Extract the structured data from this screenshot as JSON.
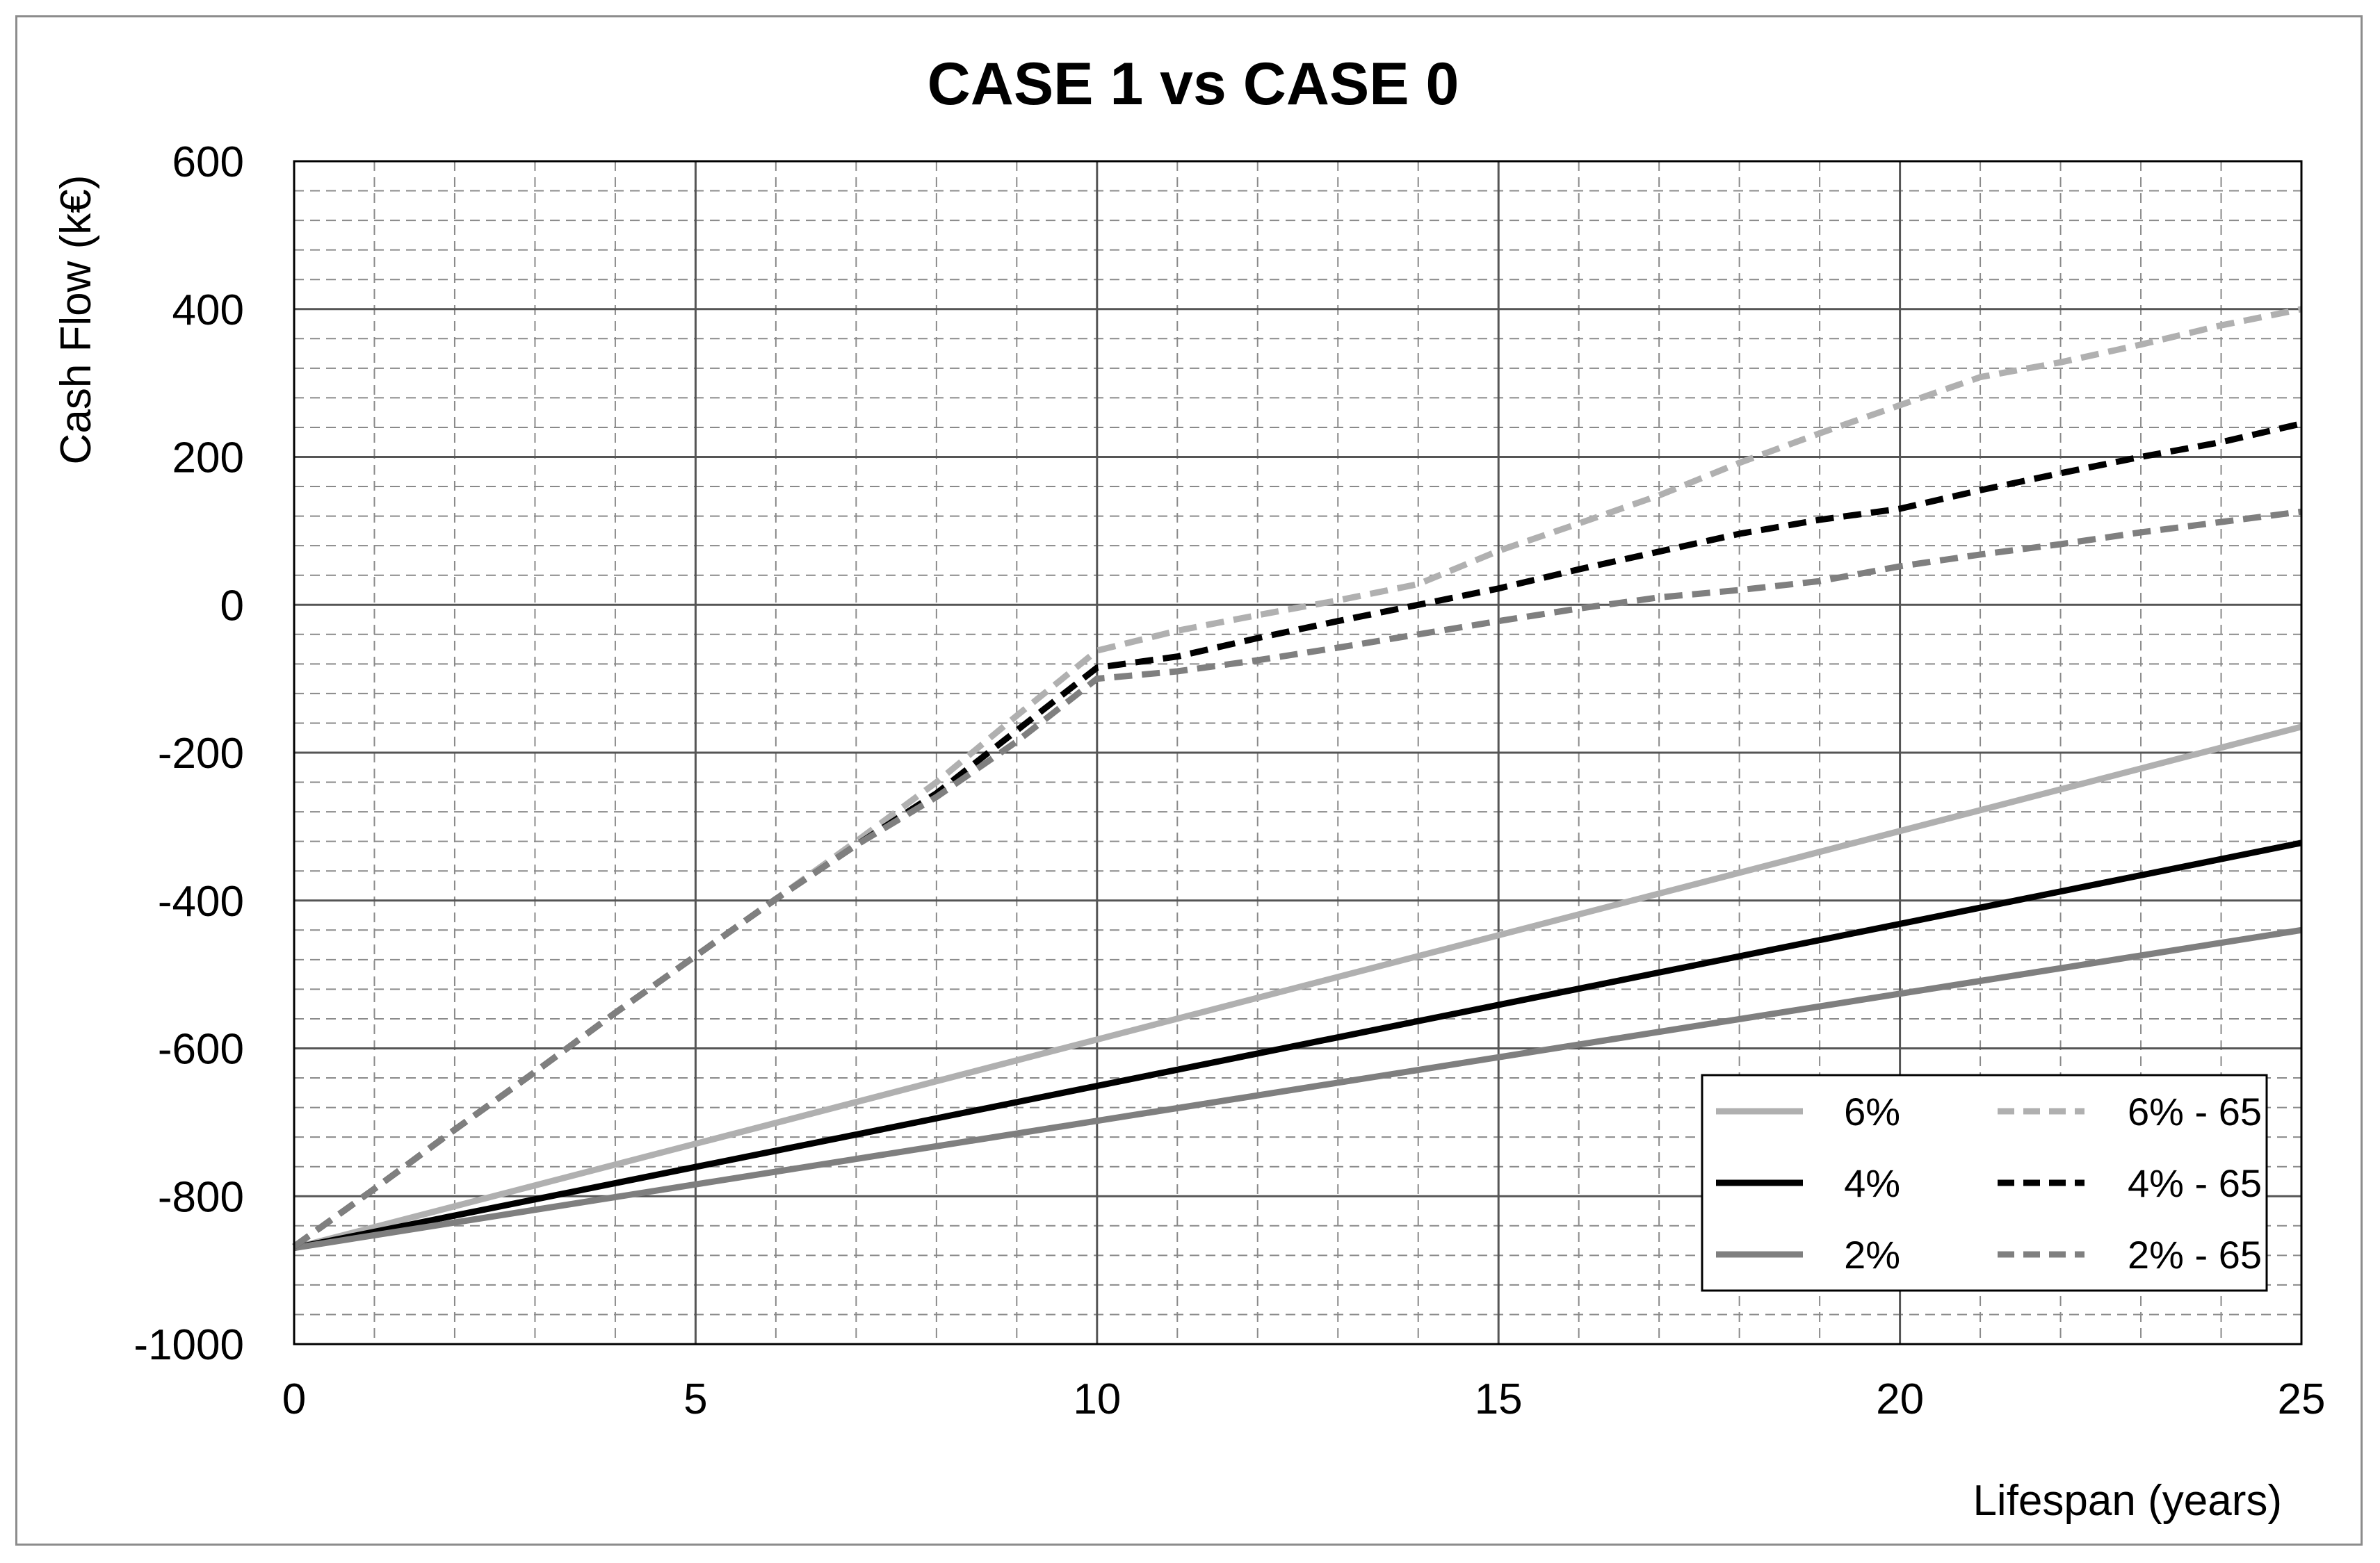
{
  "chart_data": {
    "type": "line",
    "title": "CASE 1 vs CASE 0",
    "xlabel": "Lifespan (years)",
    "ylabel": "Cash Flow (k€)",
    "xlim": [
      0,
      25
    ],
    "ylim": [
      -1000,
      600
    ],
    "xticks": [
      0,
      5,
      10,
      15,
      20,
      25
    ],
    "yticks": [
      600,
      400,
      200,
      0,
      -200,
      -400,
      -600,
      -800,
      -1000
    ],
    "grid": {
      "major": true,
      "minor": true,
      "minor_x_step": 1,
      "minor_y_step": 40
    },
    "legend_position": "bottom-right",
    "series": [
      {
        "name": "6%",
        "style": "solid",
        "color": "#b0b0b0",
        "x": [
          0,
          25
        ],
        "y": [
          -870,
          -165
        ]
      },
      {
        "name": "4%",
        "style": "solid",
        "color": "#000000",
        "x": [
          0,
          25
        ],
        "y": [
          -870,
          -322
        ]
      },
      {
        "name": "2%",
        "style": "solid",
        "color": "#7f7f7f",
        "x": [
          0,
          25
        ],
        "y": [
          -870,
          -440
        ]
      },
      {
        "name": "6% - 65",
        "style": "dashed",
        "color": "#b0b0b0",
        "x": [
          0,
          1,
          2,
          3,
          4,
          5,
          6,
          7,
          8,
          9,
          10,
          11,
          12,
          13,
          14,
          15,
          16,
          17,
          18,
          19,
          20,
          21,
          22,
          23,
          24,
          25
        ],
        "y": [
          -868,
          -790,
          -710,
          -632,
          -552,
          -475,
          -398,
          -320,
          -240,
          -150,
          -62,
          -35,
          -14,
          6,
          28,
          73,
          110,
          148,
          192,
          232,
          270,
          308,
          328,
          352,
          378,
          400
        ]
      },
      {
        "name": "4% - 65",
        "style": "dashed",
        "color": "#000000",
        "x": [
          0,
          1,
          2,
          3,
          4,
          5,
          6,
          7,
          8,
          9,
          10,
          11,
          12,
          13,
          14,
          15,
          16,
          17,
          18,
          19,
          20,
          21,
          22,
          23,
          24,
          25
        ],
        "y": [
          -868,
          -790,
          -710,
          -632,
          -552,
          -475,
          -398,
          -325,
          -255,
          -170,
          -85,
          -70,
          -45,
          -22,
          0,
          22,
          48,
          72,
          96,
          115,
          130,
          155,
          178,
          200,
          220,
          245
        ]
      },
      {
        "name": "2% - 65",
        "style": "dashed",
        "color": "#7f7f7f",
        "x": [
          0,
          1,
          2,
          3,
          4,
          5,
          6,
          7,
          8,
          9,
          10,
          11,
          12,
          13,
          14,
          15,
          16,
          17,
          18,
          19,
          20,
          21,
          22,
          23,
          24,
          25
        ],
        "y": [
          -868,
          -790,
          -710,
          -632,
          -552,
          -475,
          -398,
          -325,
          -260,
          -185,
          -100,
          -90,
          -75,
          -58,
          -40,
          -22,
          -5,
          10,
          20,
          32,
          52,
          68,
          82,
          98,
          112,
          126
        ]
      }
    ]
  }
}
